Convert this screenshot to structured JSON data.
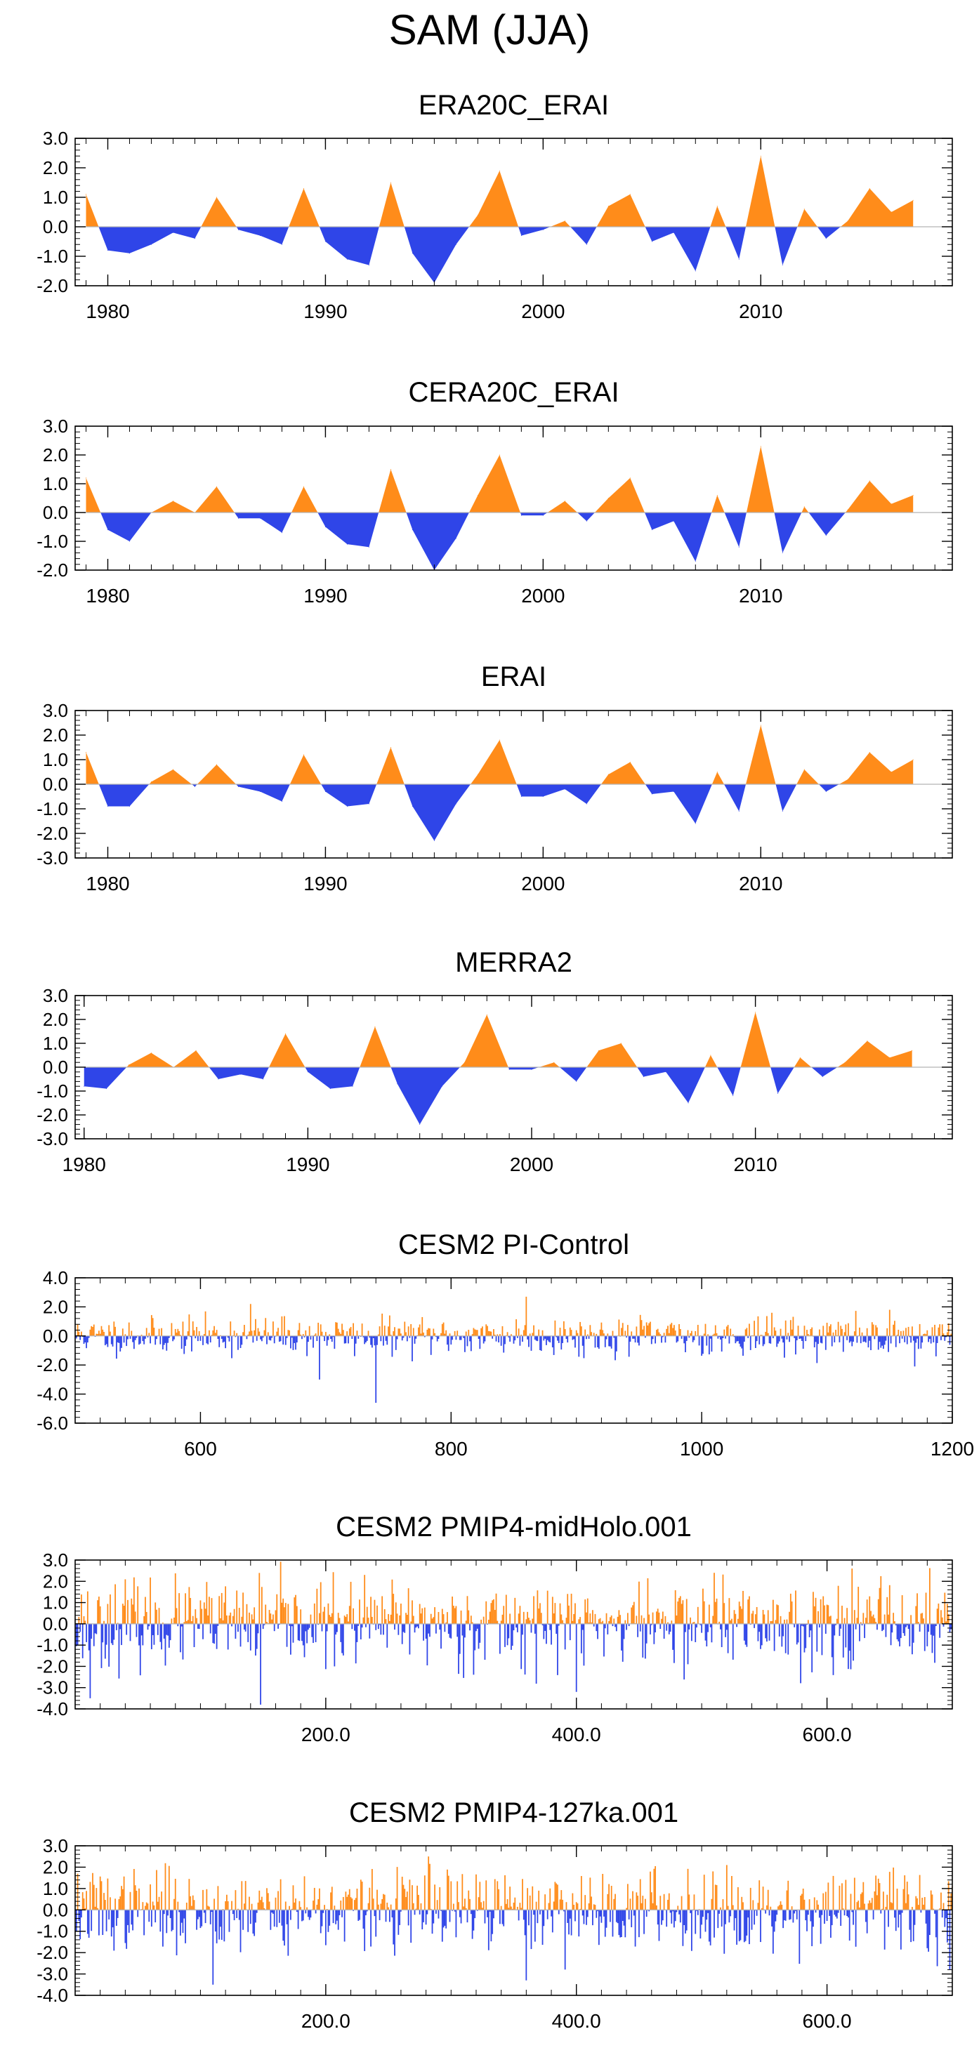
{
  "figure": {
    "title": "SAM (JJA)"
  },
  "colors": {
    "positive": "#FF8C1A",
    "negative": "#2F45E8",
    "axis": "#000000",
    "zero_line": "#B4B4B4"
  },
  "chart_data": [
    {
      "type": "area",
      "title": "ERA20C_ERAI",
      "x": [
        1979,
        1980,
        1981,
        1982,
        1983,
        1984,
        1985,
        1986,
        1987,
        1988,
        1989,
        1990,
        1991,
        1992,
        1993,
        1994,
        1995,
        1996,
        1997,
        1998,
        1999,
        2000,
        2001,
        2002,
        2003,
        2004,
        2005,
        2006,
        2007,
        2008,
        2009,
        2010,
        2011,
        2012,
        2013,
        2014,
        2015,
        2016,
        2017
      ],
      "values": [
        1.1,
        -0.8,
        -0.9,
        -0.6,
        -0.2,
        -0.4,
        1.0,
        -0.1,
        -0.3,
        -0.6,
        1.3,
        -0.5,
        -1.1,
        -1.3,
        1.5,
        -0.9,
        -1.9,
        -0.6,
        0.4,
        1.9,
        -0.3,
        -0.1,
        0.2,
        -0.6,
        0.7,
        1.1,
        -0.5,
        -0.2,
        -1.5,
        0.7,
        -1.1,
        2.4,
        -1.3,
        0.6,
        -0.4,
        0.2,
        1.3,
        0.5,
        0.9
      ],
      "xlim": [
        1978.5,
        2018.8
      ],
      "ylim": [
        -2.0,
        3.0
      ],
      "xticks": [
        1980,
        1990,
        2000,
        2010
      ],
      "xticklabels": [
        "1980",
        "1990",
        "2000",
        "2010"
      ],
      "xminor": 1,
      "yticks": [
        -2.0,
        -1.0,
        0.0,
        1.0,
        2.0,
        3.0
      ],
      "yticklabels": [
        "-2.0",
        "-1.0",
        "0.0",
        "1.0",
        "2.0",
        "3.0"
      ],
      "yminor": 0.2
    },
    {
      "type": "area",
      "title": "CERA20C_ERAI",
      "x": [
        1979,
        1980,
        1981,
        1982,
        1983,
        1984,
        1985,
        1986,
        1987,
        1988,
        1989,
        1990,
        1991,
        1992,
        1993,
        1994,
        1995,
        1996,
        1997,
        1998,
        1999,
        2000,
        2001,
        2002,
        2003,
        2004,
        2005,
        2006,
        2007,
        2008,
        2009,
        2010,
        2011,
        2012,
        2013,
        2014,
        2015,
        2016,
        2017
      ],
      "values": [
        1.2,
        -0.6,
        -1.0,
        0.0,
        0.4,
        0.0,
        0.9,
        -0.2,
        -0.2,
        -0.7,
        0.9,
        -0.5,
        -1.1,
        -1.2,
        1.5,
        -0.6,
        -2.0,
        -0.9,
        0.6,
        2.0,
        -0.1,
        -0.1,
        0.4,
        -0.3,
        0.5,
        1.2,
        -0.6,
        -0.3,
        -1.7,
        0.6,
        -1.2,
        2.3,
        -1.4,
        0.2,
        -0.8,
        0.1,
        1.1,
        0.3,
        0.6
      ],
      "xlim": [
        1978.5,
        2018.8
      ],
      "ylim": [
        -2.0,
        3.0
      ],
      "xticks": [
        1980,
        1990,
        2000,
        2010
      ],
      "xticklabels": [
        "1980",
        "1990",
        "2000",
        "2010"
      ],
      "xminor": 1,
      "yticks": [
        -2.0,
        -1.0,
        0.0,
        1.0,
        2.0,
        3.0
      ],
      "yticklabels": [
        "-2.0",
        "-1.0",
        "0.0",
        "1.0",
        "2.0",
        "3.0"
      ],
      "yminor": 0.2
    },
    {
      "type": "area",
      "title": "ERAI",
      "x": [
        1979,
        1980,
        1981,
        1982,
        1983,
        1984,
        1985,
        1986,
        1987,
        1988,
        1989,
        1990,
        1991,
        1992,
        1993,
        1994,
        1995,
        1996,
        1997,
        1998,
        1999,
        2000,
        2001,
        2002,
        2003,
        2004,
        2005,
        2006,
        2007,
        2008,
        2009,
        2010,
        2011,
        2012,
        2013,
        2014,
        2015,
        2016,
        2017
      ],
      "values": [
        1.3,
        -0.9,
        -0.9,
        0.1,
        0.6,
        -0.1,
        0.8,
        -0.1,
        -0.3,
        -0.7,
        1.2,
        -0.3,
        -0.9,
        -0.8,
        1.5,
        -0.9,
        -2.3,
        -0.8,
        0.4,
        1.8,
        -0.5,
        -0.5,
        -0.2,
        -0.8,
        0.4,
        0.9,
        -0.4,
        -0.3,
        -1.6,
        0.5,
        -1.1,
        2.4,
        -1.1,
        0.6,
        -0.3,
        0.2,
        1.3,
        0.5,
        1.0
      ],
      "xlim": [
        1978.5,
        2018.8
      ],
      "ylim": [
        -3.0,
        3.0
      ],
      "xticks": [
        1980,
        1990,
        2000,
        2010
      ],
      "xticklabels": [
        "1980",
        "1990",
        "2000",
        "2010"
      ],
      "xminor": 1,
      "yticks": [
        -3.0,
        -2.0,
        -1.0,
        0.0,
        1.0,
        2.0,
        3.0
      ],
      "yticklabels": [
        "-3.0",
        "-2.0",
        "-1.0",
        "0.0",
        "1.0",
        "2.0",
        "3.0"
      ],
      "yminor": 0.2
    },
    {
      "type": "area",
      "title": "MERRA2",
      "x": [
        1980,
        1981,
        1982,
        1983,
        1984,
        1985,
        1986,
        1987,
        1988,
        1989,
        1990,
        1991,
        1992,
        1993,
        1994,
        1995,
        1996,
        1997,
        1998,
        1999,
        2000,
        2001,
        2002,
        2003,
        2004,
        2005,
        2006,
        2007,
        2008,
        2009,
        2010,
        2011,
        2012,
        2013,
        2014,
        2015,
        2016,
        2017
      ],
      "values": [
        -0.8,
        -0.9,
        0.1,
        0.6,
        0.0,
        0.7,
        -0.5,
        -0.3,
        -0.5,
        1.4,
        -0.2,
        -0.9,
        -0.8,
        1.7,
        -0.7,
        -2.4,
        -0.8,
        0.2,
        2.2,
        -0.1,
        -0.1,
        0.2,
        -0.6,
        0.7,
        1.0,
        -0.4,
        -0.2,
        -1.5,
        0.5,
        -1.2,
        2.3,
        -1.1,
        0.4,
        -0.4,
        0.2,
        1.1,
        0.4,
        0.7
      ],
      "xlim": [
        1979.6,
        2018.8
      ],
      "ylim": [
        -3.0,
        3.0
      ],
      "xticks": [
        1980,
        1990,
        2000,
        2010
      ],
      "xticklabels": [
        "1980",
        "1990",
        "2000",
        "2010"
      ],
      "xminor": 1,
      "yticks": [
        -3.0,
        -2.0,
        -1.0,
        0.0,
        1.0,
        2.0,
        3.0
      ],
      "yticklabels": [
        "-3.0",
        "-2.0",
        "-1.0",
        "0.0",
        "1.0",
        "2.0",
        "3.0"
      ],
      "yminor": 0.2
    },
    {
      "type": "bar",
      "title": "CESM2 PI-Control",
      "x_start": 501,
      "x_end": 1200,
      "x_step": 1,
      "generator": {
        "seed": 11,
        "std": 0.62,
        "spikes": [
          {
            "x": 740,
            "value": -4.6
          },
          {
            "x": 860,
            "value": 2.7
          },
          {
            "x": 640,
            "value": 2.2
          },
          {
            "x": 695,
            "value": -3.0
          },
          {
            "x": 1170,
            "value": -2.1
          }
        ]
      },
      "xlim": [
        500,
        1200
      ],
      "ylim": [
        -6.0,
        4.0
      ],
      "xticks": [
        600,
        800,
        1000,
        1200
      ],
      "xticklabels": [
        "600",
        "800",
        "1000",
        "1200"
      ],
      "xminor": 20,
      "yticks": [
        -6.0,
        -4.0,
        -2.0,
        0.0,
        2.0,
        4.0
      ],
      "yticklabels": [
        "-6.0",
        "-4.0",
        "-2.0",
        "0.0",
        "2.0",
        "4.0"
      ],
      "yminor": 0.4
    },
    {
      "type": "bar",
      "title": "CESM2 PMIP4-midHolo.001",
      "x_start": 1,
      "x_end": 700,
      "x_step": 1,
      "generator": {
        "seed": 23,
        "std": 0.95,
        "spikes": [
          {
            "x": 12,
            "value": -3.5
          },
          {
            "x": 148,
            "value": -3.8
          },
          {
            "x": 620,
            "value": 2.6
          },
          {
            "x": 510,
            "value": 2.4
          },
          {
            "x": 400,
            "value": -3.2
          }
        ]
      },
      "xlim": [
        0,
        700
      ],
      "ylim": [
        -4.0,
        3.0
      ],
      "xticks": [
        200,
        400,
        600
      ],
      "xticklabels": [
        "200.0",
        "400.0",
        "600.0"
      ],
      "xminor": 20,
      "yticks": [
        -4.0,
        -3.0,
        -2.0,
        -1.0,
        0.0,
        1.0,
        2.0,
        3.0
      ],
      "yticklabels": [
        "-4.0",
        "-3.0",
        "-2.0",
        "-1.0",
        "0.0",
        "1.0",
        "2.0",
        "3.0"
      ],
      "yminor": 0.2
    },
    {
      "type": "bar",
      "title": "CESM2 PMIP4-127ka.001",
      "x_start": 1,
      "x_end": 700,
      "x_step": 1,
      "generator": {
        "seed": 37,
        "std": 0.9,
        "spikes": [
          {
            "x": 110,
            "value": -3.5
          },
          {
            "x": 282,
            "value": 2.5
          },
          {
            "x": 360,
            "value": -3.3
          },
          {
            "x": 698,
            "value": -2.8
          },
          {
            "x": 520,
            "value": 2.1
          }
        ]
      },
      "xlim": [
        0,
        700
      ],
      "ylim": [
        -4.0,
        3.0
      ],
      "xticks": [
        200,
        400,
        600
      ],
      "xticklabels": [
        "200.0",
        "400.0",
        "600.0"
      ],
      "xminor": 20,
      "yticks": [
        -4.0,
        -3.0,
        -2.0,
        -1.0,
        0.0,
        1.0,
        2.0,
        3.0
      ],
      "yticklabels": [
        "-4.0",
        "-3.0",
        "-2.0",
        "-1.0",
        "0.0",
        "1.0",
        "2.0",
        "3.0"
      ],
      "yminor": 0.2
    }
  ]
}
